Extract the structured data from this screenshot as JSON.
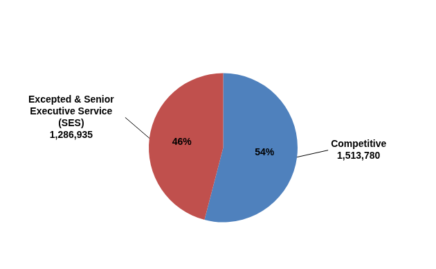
{
  "chart_data": {
    "type": "pie",
    "categories": [
      "Competitive",
      "Excepted & Senior Executive Service (SES)"
    ],
    "values": [
      1513780,
      1286935
    ],
    "value_labels": [
      "1,513,780",
      "1,286,935"
    ],
    "percents": [
      54,
      46
    ],
    "percent_labels": [
      "54%",
      "46%"
    ],
    "colors": [
      "#4f81bd",
      "#c0504d"
    ],
    "data_labels": true
  }
}
